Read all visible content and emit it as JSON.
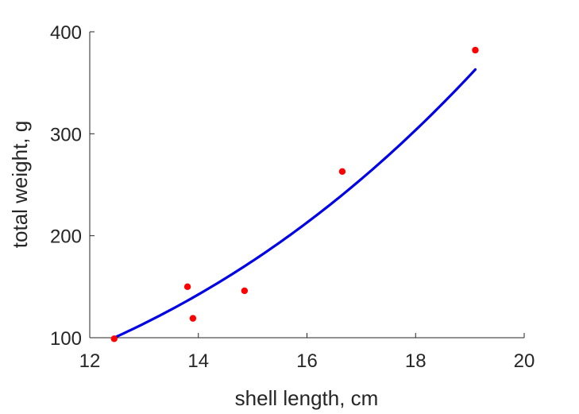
{
  "chart_data": {
    "type": "scatter",
    "title": "",
    "xlabel": "shell length, cm",
    "ylabel": "total weight, g",
    "xlim": [
      12,
      20
    ],
    "ylim": [
      100,
      400
    ],
    "xticks": [
      12,
      14,
      16,
      18,
      20
    ],
    "xtick_labels": [
      "12",
      "14",
      "16",
      "18",
      "20"
    ],
    "yticks": [
      100,
      200,
      300,
      400
    ],
    "ytick_labels": [
      "100",
      "200",
      "300",
      "400"
    ],
    "grid": false,
    "points": {
      "color": "#ff0000",
      "x": [
        12.45,
        13.8,
        13.9,
        14.85,
        16.65,
        19.1
      ],
      "y": [
        99,
        150,
        119,
        146,
        263,
        382
      ]
    },
    "fit": {
      "color": "#0000e6",
      "x_range": [
        12.45,
        19.1
      ],
      "start_point": [
        12.45,
        100
      ],
      "end_point": [
        19.1,
        363
      ]
    }
  }
}
